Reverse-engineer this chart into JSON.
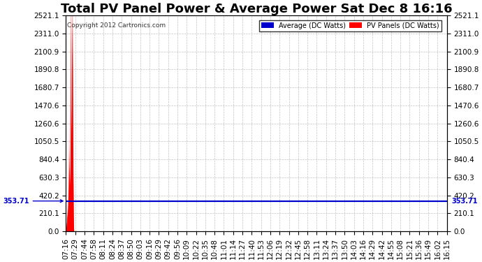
{
  "title": "Total PV Panel Power & Average Power Sat Dec 8 16:16",
  "copyright": "Copyright 2012 Cartronics.com",
  "avg_label": "Average (DC Watts)",
  "pv_label": "PV Panels (DC Watts)",
  "avg_value": 353.71,
  "y_max": 2521.1,
  "y_min": 0.0,
  "y_ticks": [
    0.0,
    210.1,
    420.2,
    630.3,
    840.4,
    1050.5,
    1260.6,
    1470.6,
    1680.7,
    1890.8,
    2100.9,
    2311.0,
    2521.1
  ],
  "bg_color": "#ffffff",
  "plot_bg_color": "#ffffff",
  "grid_color": "#aaaaaa",
  "pv_color": "#ff0000",
  "avg_color": "#0000cc",
  "title_fontsize": 13,
  "tick_fontsize": 7.5,
  "x_labels": [
    "07:16",
    "07:29",
    "07:44",
    "07:58",
    "08:11",
    "08:24",
    "08:37",
    "08:50",
    "09:03",
    "09:16",
    "09:29",
    "09:42",
    "09:56",
    "10:09",
    "10:22",
    "10:35",
    "10:48",
    "11:01",
    "11:14",
    "11:27",
    "11:40",
    "11:53",
    "12:06",
    "12:19",
    "12:32",
    "12:45",
    "12:58",
    "13:11",
    "13:24",
    "13:37",
    "13:50",
    "14:03",
    "14:16",
    "14:29",
    "14:42",
    "14:55",
    "15:08",
    "15:21",
    "15:36",
    "15:49",
    "16:02",
    "16:15"
  ]
}
